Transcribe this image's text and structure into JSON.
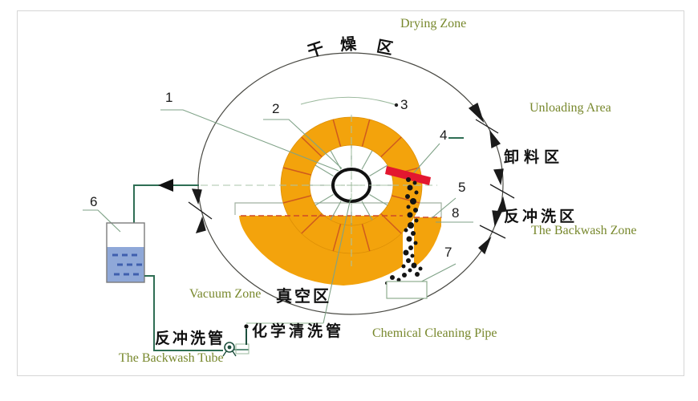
{
  "zones": {
    "drying_en": "Drying Zone",
    "drying_cn": [
      "干",
      "燥",
      "区"
    ],
    "unloading_en": "Unloading Area",
    "unloading_cn": "卸料区",
    "backwash_zone_cn": "反冲洗区",
    "backwash_zone_en": "The Backwash Zone",
    "vacuum_en": "Vacuum Zone",
    "vacuum_cn": "真空区"
  },
  "pipes": {
    "backwash_tube_cn": "反冲洗管",
    "backwash_tube_en": "The Backwash Tube",
    "chemical_pipe_cn": "化学清洗管",
    "chemical_pipe_en": "Chemical Cleaning Pipe"
  },
  "parts": {
    "n1": "1",
    "n2": "2",
    "n3": "3",
    "n4": "4",
    "n5": "5",
    "n6": "6",
    "n7": "7",
    "n8": "8"
  },
  "colors": {
    "label_green": "#78882d",
    "ring_orange": "#f3a30c",
    "sector_line": "#cf5a1e",
    "scraper_red": "#e3172f",
    "liquid_blue": "#8fa8d8",
    "pipe_green": "#2f6e54",
    "leader_green": "#7fa287",
    "level_red": "#cf4a28"
  }
}
